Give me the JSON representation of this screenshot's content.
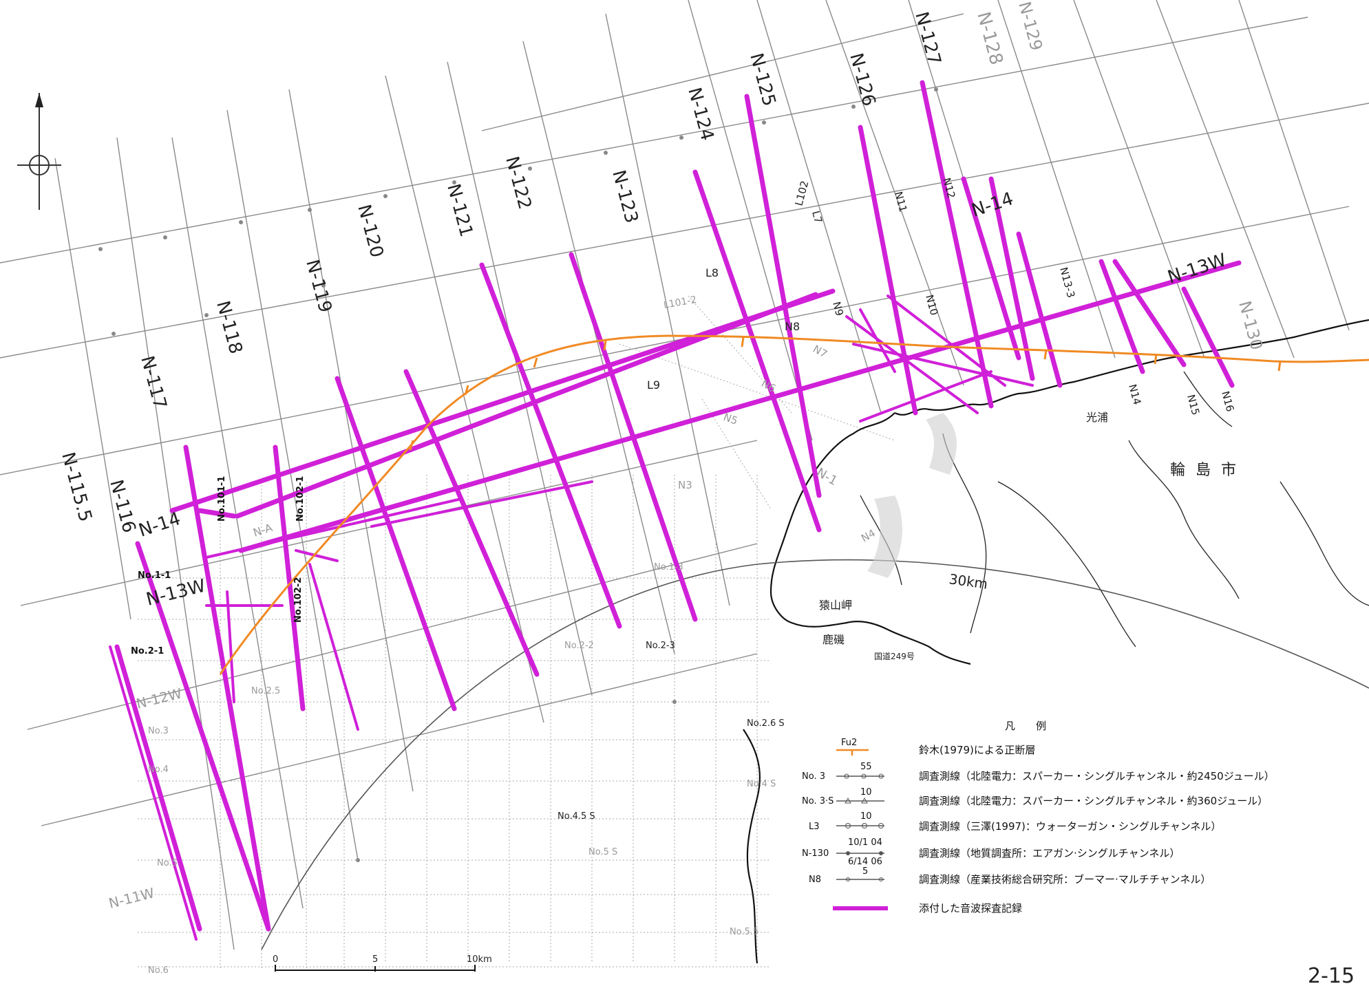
{
  "lines_n": [
    {
      "label": "N-115.5"
    },
    {
      "label": "N-116"
    },
    {
      "label": "N-117"
    },
    {
      "label": "N-118"
    },
    {
      "label": "N-119"
    },
    {
      "label": "N-120"
    },
    {
      "label": "N-121"
    },
    {
      "label": "N-122"
    },
    {
      "label": "N-123"
    },
    {
      "label": "N-124"
    },
    {
      "label": "N-125"
    },
    {
      "label": "N-126"
    },
    {
      "label": "N-127"
    },
    {
      "label": "N-128"
    },
    {
      "label": "N-129"
    }
  ],
  "lines_other": {
    "n14": "N-14",
    "n13w": "N-13W",
    "n12w": "N-12W",
    "n11w": "N-11W",
    "n14_east": "N-14",
    "n13w_east": "N-13W",
    "n130": "N-130"
  },
  "survey_labels": {
    "no101_1": "No.101-1",
    "no102_1": "No.102-1",
    "no102_2": "No.102-2",
    "no1_1": "No.1-1",
    "no2_1": "No.2-1",
    "no2_5": "No.2.5",
    "no3": "No.3",
    "no4": "No.4",
    "no5": "No.5",
    "no6": "No.6",
    "no2_3": "No.2-3",
    "no2_2": "No.2-2",
    "no1_3": "No.1-3",
    "no4_5s": "No.4.5 S",
    "no5s": "No.5 S",
    "no5_5": "No.5.5",
    "no2_6s": "No.2.6 S",
    "no4s": "No.4 S",
    "no3s": "No.3",
    "na": "N-A",
    "l8": "L8",
    "l9": "L9",
    "l101_2": "L101-2",
    "l102": "L102",
    "l7": "L7",
    "n8": "N8",
    "n9": "N9",
    "n10": "N10",
    "n11": "N11",
    "n12": "N12",
    "n13_3": "N13-3",
    "n14s": "N14",
    "n15": "N15",
    "n16": "N16",
    "n5": "N5",
    "n6": "N6",
    "n7": "N7",
    "n3": "N3",
    "n4": "N4",
    "n1": "N-1"
  },
  "places": {
    "wajima": "輪 島 市",
    "kouura": "光浦",
    "saruyama": "猿山岬",
    "kashiso": "鹿磯",
    "route249": "国道249号"
  },
  "arc_label": "30km",
  "scale": {
    "ticks": [
      "0",
      "5",
      "10km"
    ]
  },
  "page_number": "2-15",
  "legend": {
    "title": "凡　　例",
    "fault_key": "Fu2",
    "rows": [
      {
        "key": "",
        "text": "鈴木(1979)による正断層"
      },
      {
        "key": "No. 3",
        "text": "調査測線（北陸電力：スパーカー・シングルチャンネル・約2450ジュール）"
      },
      {
        "key": "No. 3·S",
        "text": "調査測線（北陸電力：スパーカー・シングルチャンネル・約360ジュール）"
      },
      {
        "key": "L3",
        "text": "調査測線（三澤(1997)：ウォーターガン・シングルチャンネル）"
      },
      {
        "key": "N-130",
        "text": "調査測線（地質調査所：エアガン·シングルチャンネル）"
      },
      {
        "key": "N8",
        "text": "調査測線（産業技術総合研究所：ブーマー·マルチチャンネル）"
      },
      {
        "key": "",
        "text": "添付した音波探査記録"
      }
    ],
    "sample_small": {
      "a": "55",
      "b": "10",
      "c": "10",
      "d": "5",
      "e": "10/1 04",
      "f": "6/14 06"
    }
  },
  "colors": {
    "magenta": "#d020d8",
    "fault": "#f08a24",
    "grid": "#8a8a8a"
  },
  "icons": {
    "north": "north-arrow-icon"
  }
}
